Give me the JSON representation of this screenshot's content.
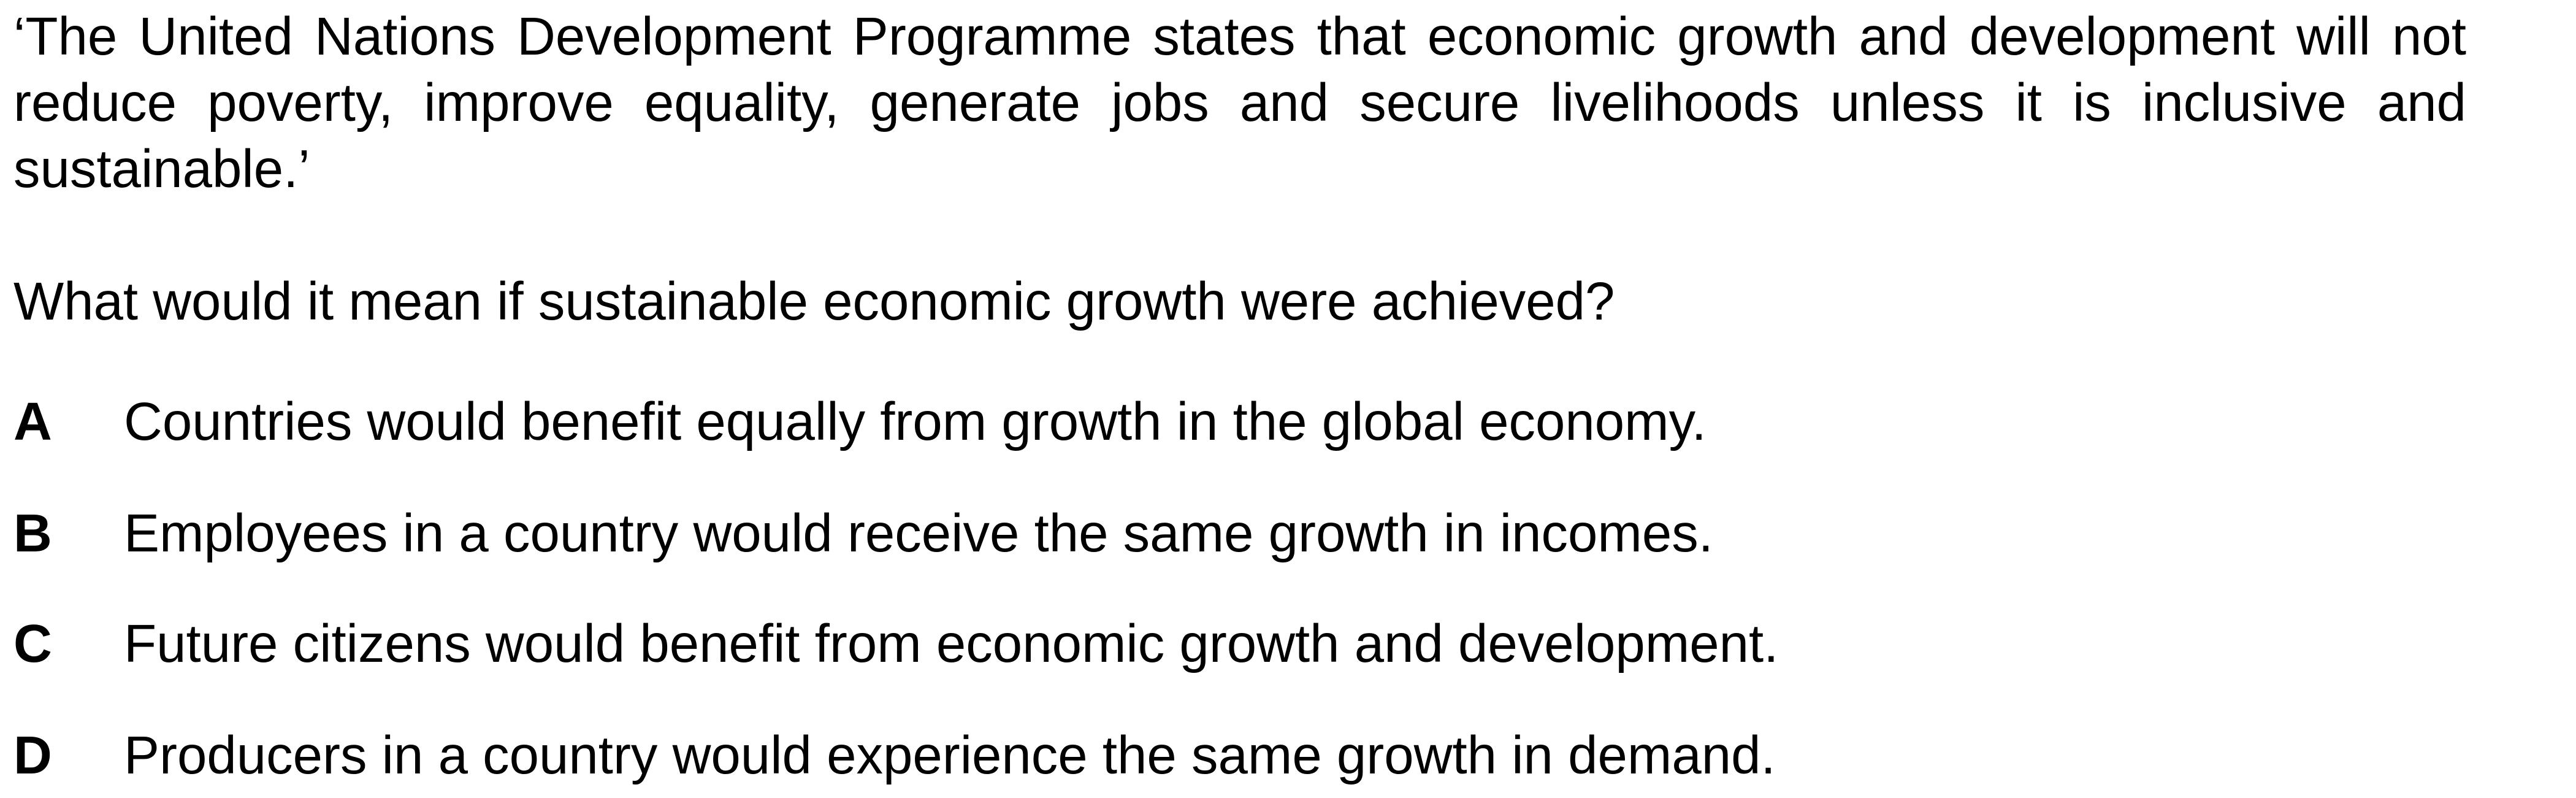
{
  "quote": "‘The United Nations Development Programme states that economic growth and development will not reduce poverty, improve equality, generate jobs and secure livelihoods unless it is inclusive and sustainable.’",
  "question": "What would it mean if sustainable economic growth were achieved?",
  "options": [
    {
      "letter": "A",
      "text": "Countries would benefit equally from growth in the global economy."
    },
    {
      "letter": "B",
      "text": "Employees in a country would receive the same growth in incomes."
    },
    {
      "letter": "C",
      "text": "Future citizens would benefit from economic growth and development."
    },
    {
      "letter": "D",
      "text": "Producers in a country would experience the same growth in demand."
    }
  ]
}
